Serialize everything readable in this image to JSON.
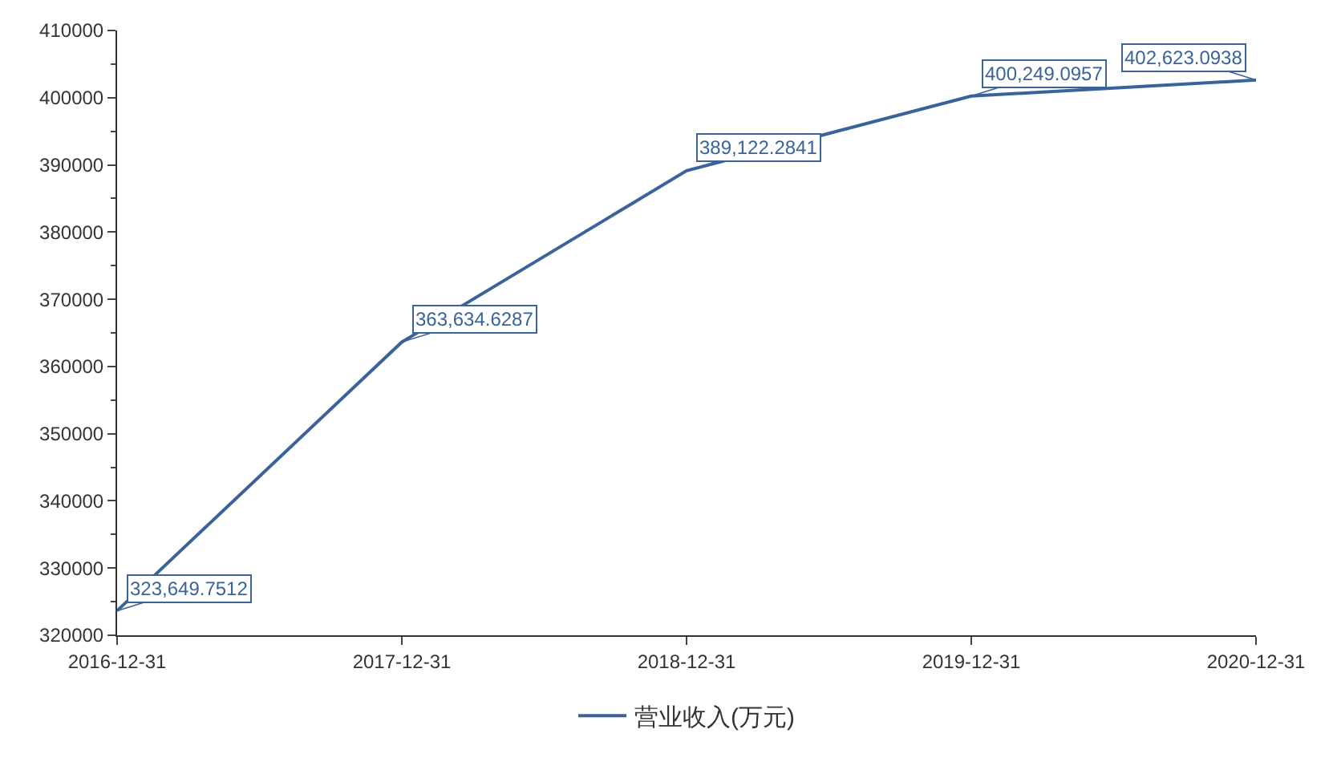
{
  "chart_data": {
    "type": "line",
    "categories": [
      "2016-12-31",
      "2017-12-31",
      "2018-12-31",
      "2019-12-31",
      "2020-12-31"
    ],
    "series": [
      {
        "name": "营业收入(万元)",
        "color": "#3a6399",
        "values": [
          323649.7512,
          363634.6287,
          389122.2841,
          400249.0957,
          402623.0938
        ],
        "value_labels": [
          "323,649.7512",
          "363,634.6287",
          "389,122.2841",
          "400,249.0957",
          "402,623.0938"
        ]
      }
    ],
    "ylim": [
      320000,
      410000
    ],
    "yticks": [
      320000,
      330000,
      340000,
      350000,
      360000,
      370000,
      380000,
      390000,
      400000,
      410000
    ],
    "legend": "bottom",
    "marker": "none",
    "line_style": "solid"
  }
}
